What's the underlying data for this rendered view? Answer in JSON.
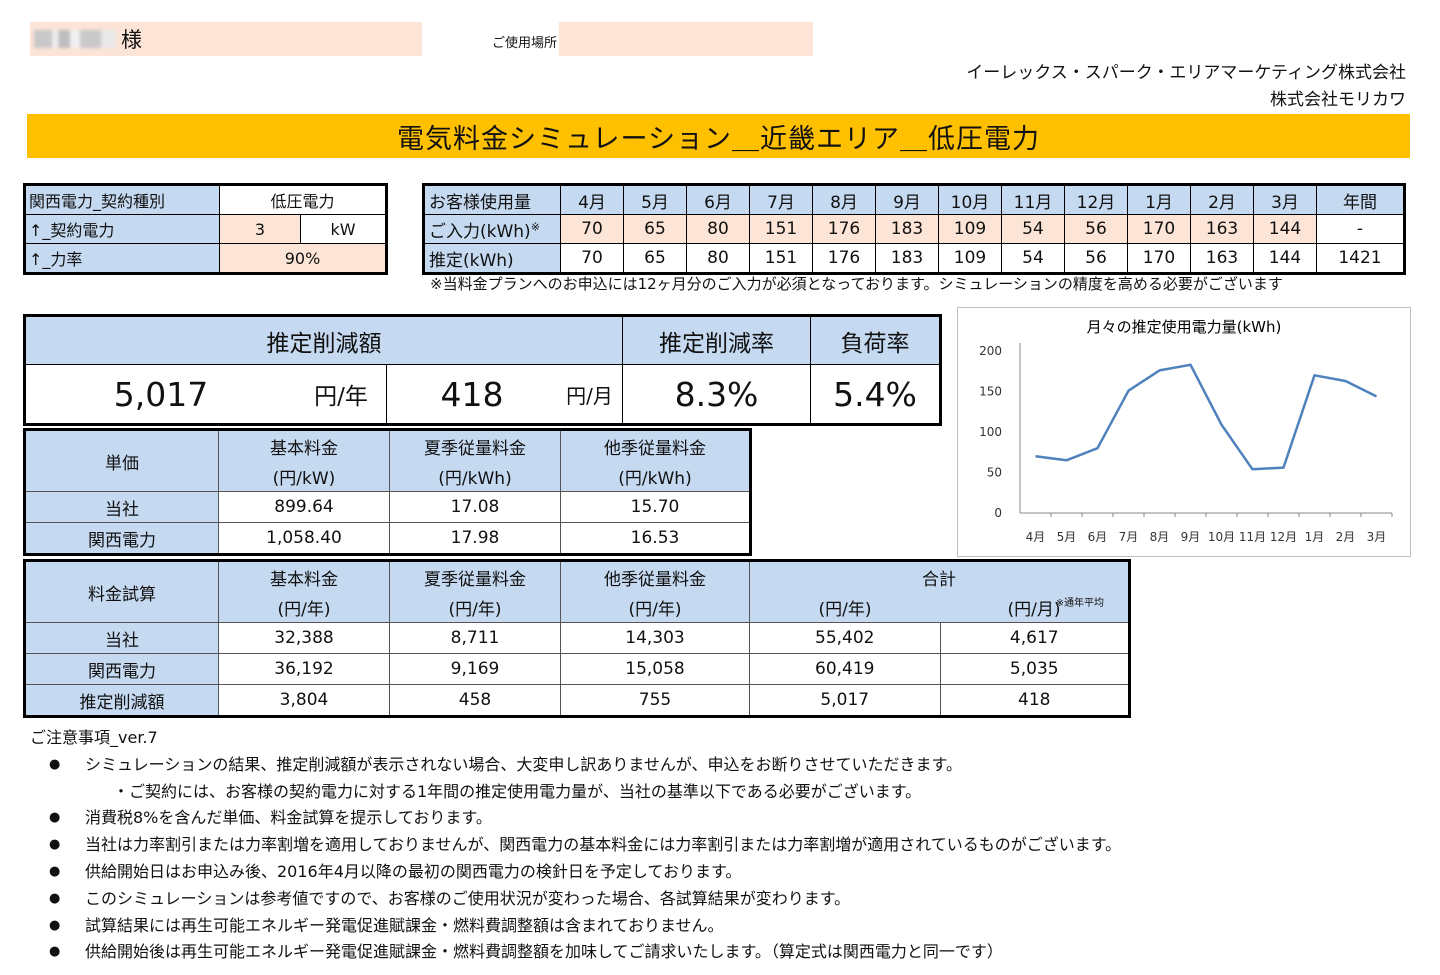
{
  "header": {
    "customer_suffix": "様",
    "location_label": "ご使用場所",
    "company_line1": "イーレックス・スパーク・エリアマーケティング株式会社",
    "company_line2": "株式会社モリカワ",
    "title": "電気料金シミュレーション＿近畿エリア＿低圧電力"
  },
  "contract": {
    "rows": [
      {
        "label": "関西電力_契約種別",
        "value": "低圧電力"
      },
      {
        "label": "↑_契約電力",
        "value": "3",
        "unit": "kW"
      },
      {
        "label": "↑_力率",
        "value": "90%"
      }
    ]
  },
  "usage": {
    "header_label": "お客様使用量",
    "months": [
      "4月",
      "5月",
      "6月",
      "7月",
      "8月",
      "9月",
      "10月",
      "11月",
      "12月",
      "1月",
      "2月",
      "3月"
    ],
    "annual_label": "年間",
    "input_label": "ご入力(kWh)",
    "input_mark": "※",
    "input_values": [
      "70",
      "65",
      "80",
      "151",
      "176",
      "183",
      "109",
      "54",
      "56",
      "170",
      "163",
      "144"
    ],
    "input_annual": "-",
    "estimate_label": "推定(kWh)",
    "estimate_values": [
      "70",
      "65",
      "80",
      "151",
      "176",
      "183",
      "109",
      "54",
      "56",
      "170",
      "163",
      "144"
    ],
    "estimate_annual": "1421",
    "note": "※当料金プランへのお申込には12ヶ月分のご入力が必須となっております。シミュレーションの精度を高める必要がございます"
  },
  "summary": {
    "reduction_label": "推定削減額",
    "rate_label": "推定削減率",
    "load_label": "負荷率",
    "yearly_value": "5,017",
    "yearly_unit": "円/年",
    "monthly_value": "418",
    "monthly_unit": "円/月",
    "rate_value": "8.3%",
    "load_value": "5.4%"
  },
  "unit_price": {
    "label": "単価",
    "cols": [
      {
        "name": "基本料金",
        "unit": "(円/kW)"
      },
      {
        "name": "夏季従量料金",
        "unit": "(円/kWh)"
      },
      {
        "name": "他季従量料金",
        "unit": "(円/kWh)"
      }
    ],
    "rows": [
      {
        "label": "当社",
        "values": [
          "899.64",
          "17.08",
          "15.70"
        ]
      },
      {
        "label": "関西電力",
        "values": [
          "1,058.40",
          "17.98",
          "16.53"
        ]
      }
    ]
  },
  "fee_trial": {
    "label": "料金試算",
    "cols": [
      {
        "name": "基本料金",
        "unit": "(円/年)"
      },
      {
        "name": "夏季従量料金",
        "unit": "(円/年)"
      },
      {
        "name": "他季従量料金",
        "unit": "(円/年)"
      }
    ],
    "total_label": "合計",
    "total_year_unit": "(円/年)",
    "total_month_unit": "(円/月)",
    "total_month_note": "※通年平均",
    "rows": [
      {
        "label": "当社",
        "values": [
          "32,388",
          "8,711",
          "14,303",
          "55,402",
          "4,617"
        ]
      },
      {
        "label": "関西電力",
        "values": [
          "36,192",
          "9,169",
          "15,058",
          "60,419",
          "5,035"
        ]
      },
      {
        "label": "推定削減額",
        "values": [
          "3,804",
          "458",
          "755",
          "5,017",
          "418"
        ]
      }
    ]
  },
  "chart_data": {
    "type": "line",
    "title": "月々の推定使用電力量(kWh)",
    "categories": [
      "4月",
      "5月",
      "6月",
      "7月",
      "8月",
      "9月",
      "10月",
      "11月",
      "12月",
      "1月",
      "2月",
      "3月"
    ],
    "values": [
      70,
      65,
      80,
      151,
      176,
      183,
      109,
      54,
      56,
      170,
      163,
      144
    ],
    "ylim": [
      0,
      200
    ],
    "yticks": [
      "200",
      "150",
      "100",
      "50",
      "0"
    ],
    "color": "#4f81bd",
    "grid": false,
    "legend": "none"
  },
  "notes": {
    "heading": "ご注意事項_ver.7",
    "items": [
      "シミュレーションの結果、推定削減額が表示されない場合、大変申し訳ありませんが、申込をお断りさせていただきます。",
      "・ご契約には、お客様の契約電力に対する1年間の推定使用電力量が、当社の基準以下である必要がございます。",
      "消費税8%を含んだ単価、料金試算を提示しております。",
      "当社は力率割引または力率割増を適用しておりませんが、関西電力の基本料金には力率割引または力率割増が適用されているものがございます。",
      "供給開始日はお申込み後、2016年4月以降の最初の関西電力の検針日を予定しております。",
      "このシミュレーションは参考値ですので、お客様のご使用状況が変わった場合、各試算結果が変わります。",
      "試算結果には再生可能エネルギー発電促進賦課金・燃料費調整額は含まれておりません。",
      "供給開始後は再生可能エネルギー発電促進賦課金・燃料費調整額を加味してご請求いたします。（算定式は関西電力と同一です）"
    ]
  }
}
